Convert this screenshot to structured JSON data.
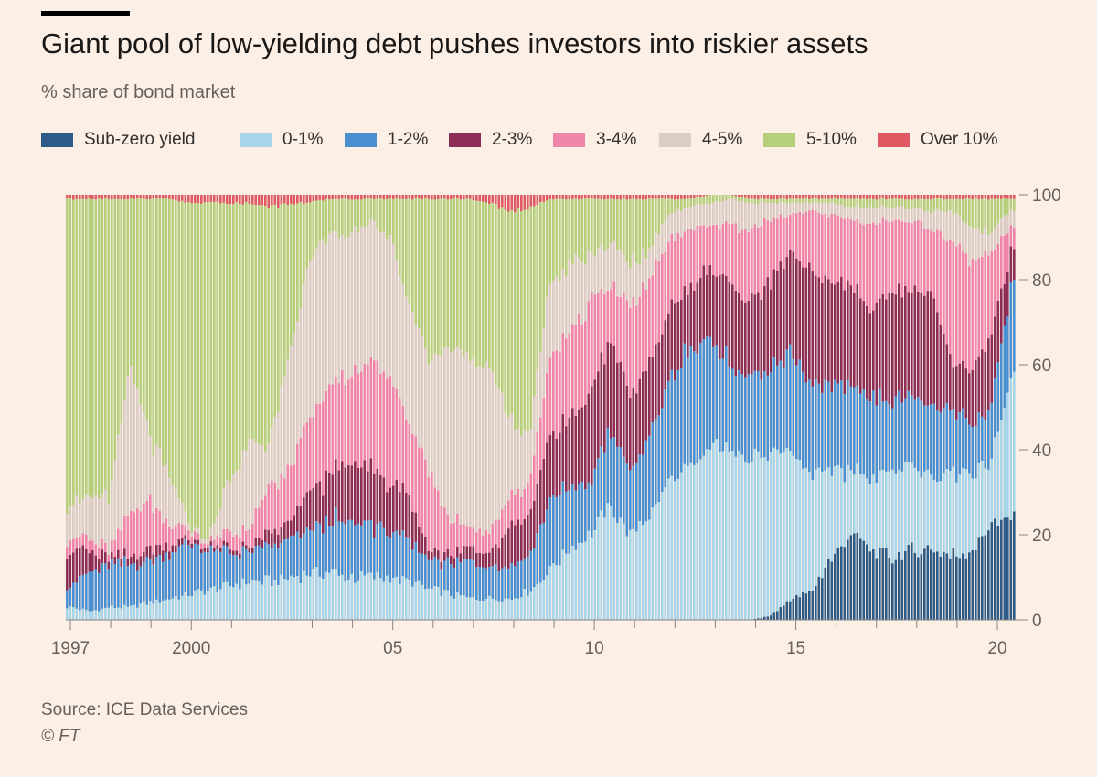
{
  "header": {
    "title": "Giant pool of low-yielding debt pushes investors into riskier assets",
    "subtitle": "% share of bond market"
  },
  "legend": {
    "items": [
      {
        "label": "Sub-zero yield",
        "color": "#2e5a87"
      },
      {
        "label": "0-1%",
        "color": "#a8d4ea"
      },
      {
        "label": "1-2%",
        "color": "#4a8fcf"
      },
      {
        "label": "2-3%",
        "color": "#8c2d55"
      },
      {
        "label": "3-4%",
        "color": "#ef85ab"
      },
      {
        "label": "4-5%",
        "color": "#dbcdc6"
      },
      {
        "label": "5-10%",
        "color": "#b6cf7d"
      },
      {
        "label": "Over 10%",
        "color": "#e05a63"
      }
    ]
  },
  "footer": {
    "source": "Source: ICE Data Services",
    "copyright": "© FT"
  },
  "chart_data": {
    "type": "area",
    "stacked": true,
    "title": "Giant pool of low-yielding debt pushes investors into riskier assets",
    "subtitle": "% share of bond market",
    "xlabel": "",
    "ylabel": "",
    "ylim": [
      0,
      100
    ],
    "y_ticks": [
      0,
      20,
      40,
      60,
      80,
      100
    ],
    "y_axis_side": "right",
    "x_tick_labels": [
      {
        "year": 1997,
        "label": "1997"
      },
      {
        "year": 2000,
        "label": "2000"
      },
      {
        "year": 2005,
        "label": "05"
      },
      {
        "year": 2010,
        "label": "10"
      },
      {
        "year": 2015,
        "label": "15"
      },
      {
        "year": 2020,
        "label": "20"
      }
    ],
    "x": [
      1997.0,
      1997.5,
      1998.0,
      1998.5,
      1999.0,
      1999.5,
      2000.0,
      2000.5,
      2001.0,
      2001.5,
      2002.0,
      2002.5,
      2003.0,
      2003.5,
      2004.0,
      2004.5,
      2005.0,
      2005.5,
      2006.0,
      2006.5,
      2007.0,
      2007.5,
      2008.0,
      2008.5,
      2009.0,
      2009.5,
      2010.0,
      2010.5,
      2011.0,
      2011.5,
      2012.0,
      2012.5,
      2013.0,
      2013.5,
      2014.0,
      2014.5,
      2015.0,
      2015.5,
      2016.0,
      2016.5,
      2017.0,
      2017.5,
      2018.0,
      2018.5,
      2019.0,
      2019.5,
      2020.0,
      2020.5
    ],
    "series": [
      {
        "name": "Sub-zero yield",
        "color": "#2e5a87",
        "values": [
          0,
          0,
          0,
          0,
          0,
          0,
          0,
          0,
          0,
          0,
          0,
          0,
          0,
          0,
          0,
          0,
          0,
          0,
          0,
          0,
          0,
          0,
          0,
          0,
          0,
          0,
          0,
          0,
          0,
          0,
          0,
          0,
          0,
          0,
          0,
          1,
          5,
          7,
          15,
          22,
          17,
          15,
          16,
          17,
          15,
          16,
          22,
          26
        ]
      },
      {
        "name": "0-1%",
        "color": "#a8d4ea",
        "values": [
          3,
          2,
          3,
          3,
          4,
          5,
          6,
          7,
          8,
          9,
          9,
          10,
          11,
          11,
          10,
          10,
          10,
          9,
          7,
          6,
          5,
          5,
          5,
          7,
          12,
          17,
          20,
          27,
          20,
          25,
          33,
          35,
          41,
          40,
          38,
          39,
          36,
          30,
          22,
          16,
          18,
          21,
          20,
          18,
          20,
          18,
          14,
          36
        ]
      },
      {
        "name": "1-2%",
        "color": "#4a8fcf",
        "values": [
          5,
          9,
          10,
          10,
          10,
          11,
          12,
          9,
          8,
          7,
          8,
          9,
          10,
          12,
          13,
          12,
          11,
          9,
          7,
          7,
          9,
          8,
          8,
          9,
          17,
          14,
          12,
          18,
          15,
          18,
          24,
          28,
          25,
          20,
          19,
          20,
          24,
          22,
          21,
          22,
          20,
          17,
          17,
          16,
          14,
          12,
          12,
          23
        ]
      },
      {
        "name": "2-3%",
        "color": "#8c2d55",
        "values": [
          8,
          5,
          2,
          2,
          3,
          2,
          1,
          1,
          1,
          1,
          3,
          4,
          9,
          11,
          14,
          13,
          12,
          10,
          2,
          2,
          3,
          3,
          9,
          9,
          15,
          16,
          21,
          22,
          18,
          18,
          16,
          15,
          17,
          19,
          18,
          22,
          24,
          28,
          26,
          27,
          21,
          27,
          25,
          28,
          11,
          13,
          17,
          9
        ]
      },
      {
        "name": "3-4%",
        "color": "#ef85ab",
        "values": [
          3,
          3,
          2,
          10,
          11,
          5,
          2,
          1,
          4,
          4,
          11,
          12,
          18,
          21,
          20,
          26,
          25,
          17,
          18,
          8,
          5,
          5,
          7,
          8,
          18,
          21,
          21,
          12,
          21,
          19,
          17,
          13,
          10,
          14,
          17,
          15,
          9,
          14,
          17,
          17,
          21,
          16,
          17,
          15,
          28,
          25,
          20,
          6
        ]
      },
      {
        "name": "4-5%",
        "color": "#dbcdc6",
        "values": [
          9,
          9,
          12,
          35,
          15,
          11,
          1,
          1,
          12,
          21,
          10,
          27,
          37,
          35,
          34,
          33,
          32,
          29,
          26,
          42,
          39,
          39,
          18,
          12,
          17,
          16,
          11,
          10,
          10,
          7,
          6,
          6,
          5,
          6,
          6,
          4,
          3,
          2,
          3,
          3,
          4,
          3,
          3,
          4,
          7,
          8,
          5,
          4
        ]
      },
      {
        "name": "5-10%",
        "color": "#b6cf7d",
        "values": [
          71,
          71,
          70,
          39,
          56,
          65,
          76,
          79,
          65,
          56,
          56,
          36,
          13,
          9,
          8,
          5,
          9,
          25,
          39,
          34,
          38,
          38,
          51,
          52,
          20,
          15,
          14,
          10,
          15,
          12,
          3,
          2,
          2,
          1,
          1,
          1,
          1,
          1,
          1,
          2,
          2,
          2,
          2,
          3,
          3,
          6,
          8,
          3
        ]
      },
      {
        "name": "Over 10%",
        "color": "#e05a63",
        "values": [
          1,
          1,
          1,
          1,
          1,
          1,
          2,
          2,
          2,
          2,
          3,
          2,
          2,
          1,
          1,
          1,
          1,
          1,
          1,
          1,
          1,
          2,
          4,
          3,
          1,
          1,
          1,
          1,
          1,
          1,
          1,
          1,
          0,
          0,
          1,
          1,
          1,
          1,
          1,
          1,
          1,
          1,
          1,
          1,
          1,
          1,
          1,
          1
        ]
      }
    ]
  }
}
